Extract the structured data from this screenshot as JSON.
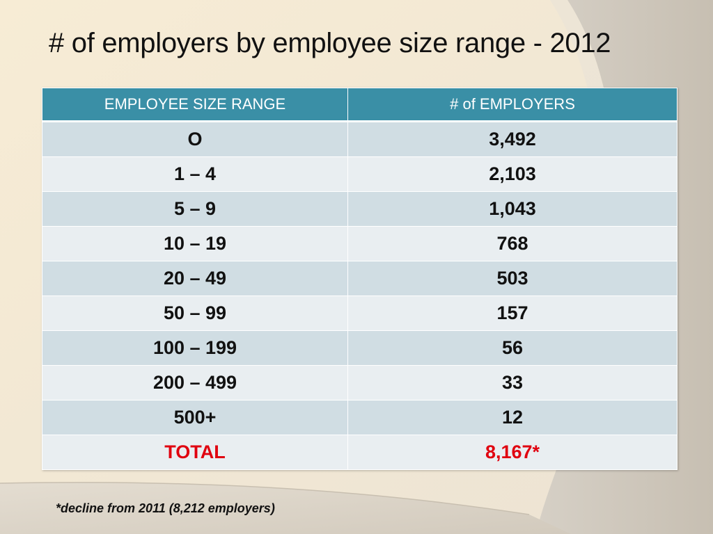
{
  "slide": {
    "title": "# of employers by employee size range - 2012",
    "footnote": "*decline from 2011 (8,212 employers)"
  },
  "table": {
    "headers": [
      "EMPLOYEE SIZE RANGE",
      "# of EMPLOYERS"
    ],
    "rows": [
      {
        "range": "O",
        "employers": "3,492"
      },
      {
        "range": "1 – 4",
        "employers": "2,103"
      },
      {
        "range": "5 – 9",
        "employers": "1,043"
      },
      {
        "range": "10 – 19",
        "employers": "768"
      },
      {
        "range": "20 – 49",
        "employers": "503"
      },
      {
        "range": "50 – 99",
        "employers": "157"
      },
      {
        "range": "100 – 199",
        "employers": "56"
      },
      {
        "range": "200 – 499",
        "employers": "33"
      },
      {
        "range": "500+",
        "employers": "12"
      }
    ],
    "total": {
      "range": "TOTAL",
      "employers": "8,167*"
    }
  },
  "colors": {
    "header_bg": "#3a8fa6",
    "row_odd": "#d0dde3",
    "row_even": "#e9eef1",
    "total_text": "#e0000f",
    "background": "#f4ead8"
  }
}
